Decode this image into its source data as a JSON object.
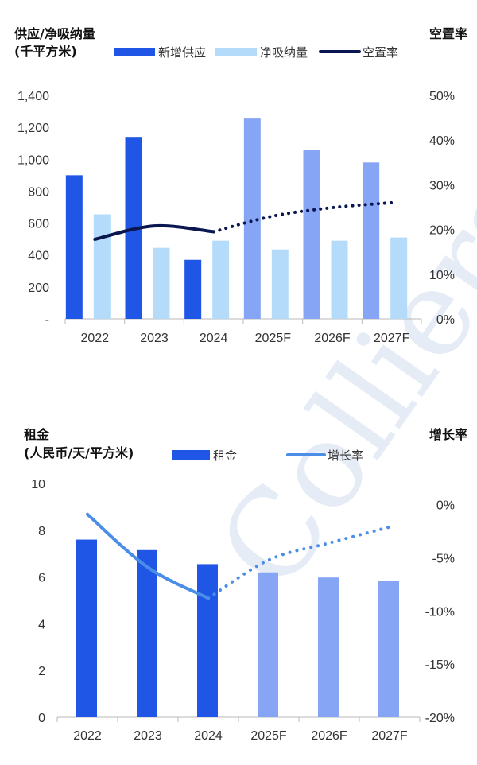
{
  "watermark": "Colliers",
  "colors": {
    "supply": "#1f56e6",
    "supply_forecast": "#87a5f5",
    "absorption": "#b4dcfa",
    "vacancy": "#0a1650",
    "rent": "#1f56e6",
    "rent_forecast": "#87a5f5",
    "growth": "#4a8ee8"
  },
  "chart_data": [
    {
      "type": "bar",
      "title_left": "供应/净吸纳量",
      "unit_left": "(千平方米)",
      "title_right": "空置率",
      "categories": [
        "2022",
        "2023",
        "2024",
        "2025F",
        "2026F",
        "2027F"
      ],
      "forecast_from_index": 3,
      "series": [
        {
          "name": "新增供应",
          "kind": "bar",
          "axis": "left",
          "values": [
            900,
            1140,
            370,
            1255,
            1060,
            980
          ]
        },
        {
          "name": "净吸纳量",
          "kind": "bar",
          "axis": "left",
          "values": [
            655,
            445,
            490,
            435,
            490,
            510
          ]
        },
        {
          "name": "空置率",
          "kind": "line",
          "axis": "right",
          "unit": "%",
          "values": [
            17.8,
            20.8,
            19.5,
            23.0,
            24.9,
            26.0
          ]
        }
      ],
      "ylim_left": [
        0,
        1400
      ],
      "ylim_right": [
        0,
        50
      ],
      "left_ticks": [
        {
          "v": 0,
          "label": "-"
        },
        {
          "v": 200,
          "label": "200"
        },
        {
          "v": 400,
          "label": "400"
        },
        {
          "v": 600,
          "label": "600"
        },
        {
          "v": 800,
          "label": "800"
        },
        {
          "v": 1000,
          "label": "1,000"
        },
        {
          "v": 1200,
          "label": "1,200"
        },
        {
          "v": 1400,
          "label": "1,400"
        }
      ],
      "right_ticks": [
        {
          "v": 0,
          "label": "0%"
        },
        {
          "v": 10,
          "label": "10%"
        },
        {
          "v": 20,
          "label": "20%"
        },
        {
          "v": 30,
          "label": "30%"
        },
        {
          "v": 40,
          "label": "40%"
        },
        {
          "v": 50,
          "label": "50%"
        }
      ]
    },
    {
      "type": "bar",
      "title_left": "租金",
      "unit_left": "(人民币/天/平方米)",
      "title_right": "增长率",
      "categories": [
        "2022",
        "2023",
        "2024",
        "2025F",
        "2026F",
        "2027F"
      ],
      "forecast_from_index": 3,
      "series": [
        {
          "name": "租金",
          "kind": "bar",
          "axis": "left",
          "values": [
            7.6,
            7.15,
            6.55,
            6.2,
            5.98,
            5.85
          ]
        },
        {
          "name": "增长率",
          "kind": "line",
          "axis": "right",
          "unit": "%",
          "values": [
            -0.9,
            -5.9,
            -8.8,
            -5.2,
            -3.6,
            -2.1
          ]
        }
      ],
      "ylim_left": [
        0,
        10
      ],
      "ylim_right": [
        -20,
        2
      ],
      "left_ticks": [
        {
          "v": 0,
          "label": "0"
        },
        {
          "v": 2,
          "label": "2"
        },
        {
          "v": 4,
          "label": "4"
        },
        {
          "v": 6,
          "label": "6"
        },
        {
          "v": 8,
          "label": "8"
        },
        {
          "v": 10,
          "label": "10"
        }
      ],
      "right_ticks": [
        {
          "v": 0,
          "label": "0%"
        },
        {
          "v": -5,
          "label": "-5%"
        },
        {
          "v": -10,
          "label": "-10%"
        },
        {
          "v": -15,
          "label": "-15%"
        },
        {
          "v": -20,
          "label": "-20%"
        }
      ]
    }
  ]
}
